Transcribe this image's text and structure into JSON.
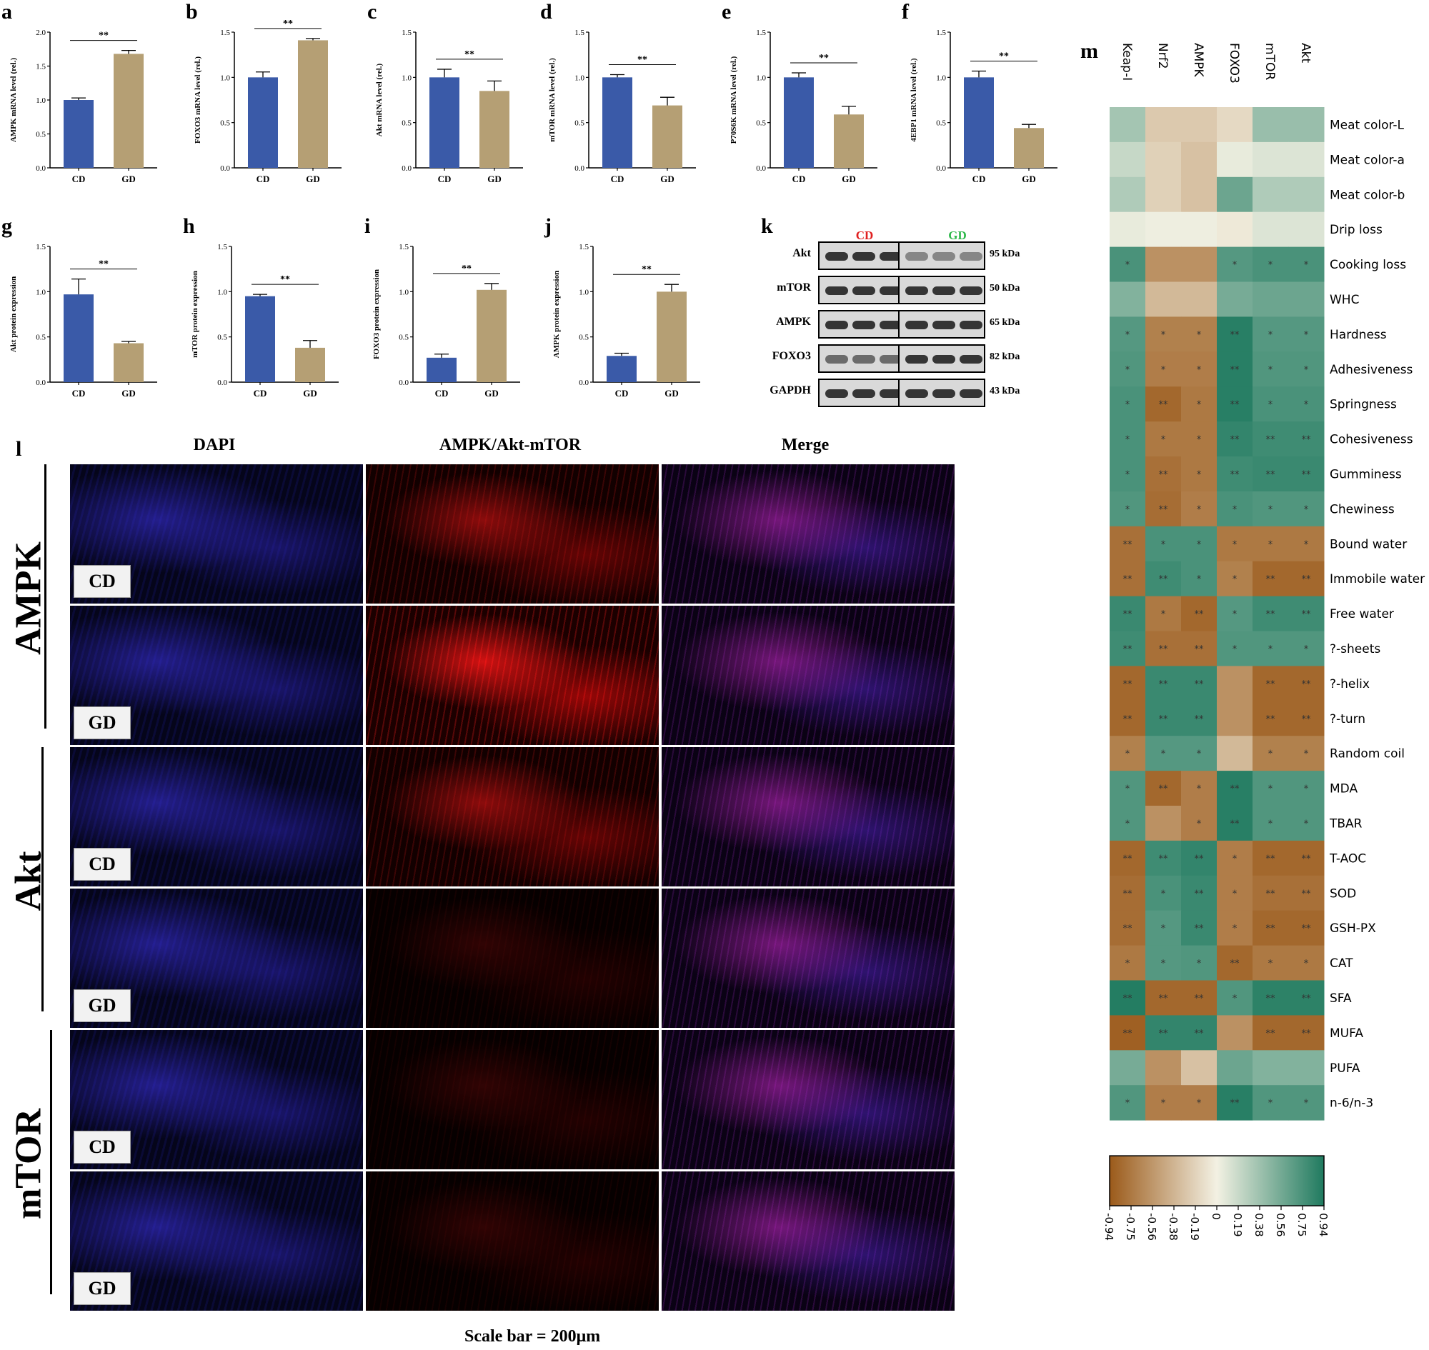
{
  "bar_panels": [
    {
      "letter": "a",
      "ylabel": "AMPK mRNA level (rel.)",
      "yticks": [
        "0.0",
        "0.5",
        "1.0",
        "1.5",
        "2.0"
      ],
      "ymax": 2.0,
      "values": [
        1.0,
        1.68
      ],
      "errors": [
        0.03,
        0.05
      ],
      "sig": "**"
    },
    {
      "letter": "b",
      "ylabel": "FOXO3 mRNA level (rel.)",
      "yticks": [
        "0.0",
        "0.5",
        "1.0",
        "1.5"
      ],
      "ymax": 1.5,
      "values": [
        1.0,
        1.41
      ],
      "errors": [
        0.06,
        0.02
      ],
      "sig": "**"
    },
    {
      "letter": "c",
      "ylabel": "Akt mRNA level (rel.)",
      "yticks": [
        "0.0",
        "0.5",
        "1.0",
        "1.5"
      ],
      "ymax": 1.5,
      "values": [
        1.0,
        0.85
      ],
      "errors": [
        0.09,
        0.11
      ],
      "sig": "**"
    },
    {
      "letter": "d",
      "ylabel": "mTOR mRNA level (rel.)",
      "yticks": [
        "0.0",
        "0.5",
        "1.0",
        "1.5"
      ],
      "ymax": 1.5,
      "values": [
        1.0,
        0.69
      ],
      "errors": [
        0.03,
        0.09
      ],
      "sig": "**"
    },
    {
      "letter": "e",
      "ylabel": "P70S6K mRNA level (rel.)",
      "yticks": [
        "0.0",
        "0.5",
        "1.0",
        "1.5"
      ],
      "ymax": 1.5,
      "values": [
        1.0,
        0.59
      ],
      "errors": [
        0.05,
        0.09
      ],
      "sig": "**"
    },
    {
      "letter": "f",
      "ylabel": "4EBP1 mRNA level (rel.)",
      "yticks": [
        "0.0",
        "0.5",
        "1.0",
        "1.5"
      ],
      "ymax": 1.5,
      "values": [
        1.0,
        0.44
      ],
      "errors": [
        0.07,
        0.04
      ],
      "sig": "**"
    },
    {
      "letter": "g",
      "ylabel": "Akt protein expression",
      "yticks": [
        "0.0",
        "0.5",
        "1.0",
        "1.5"
      ],
      "ymax": 1.5,
      "values": [
        0.97,
        0.43
      ],
      "errors": [
        0.17,
        0.02
      ],
      "sig": "**"
    },
    {
      "letter": "h",
      "ylabel": "mTOR protein expression",
      "yticks": [
        "0.0",
        "0.5",
        "1.0",
        "1.5"
      ],
      "ymax": 1.5,
      "values": [
        0.95,
        0.38
      ],
      "errors": [
        0.02,
        0.08
      ],
      "sig": "**"
    },
    {
      "letter": "i",
      "ylabel": "FOXO3 protein expression",
      "yticks": [
        "0.0",
        "0.5",
        "1.0",
        "1.5"
      ],
      "ymax": 1.5,
      "values": [
        0.27,
        1.02
      ],
      "errors": [
        0.04,
        0.07
      ],
      "sig": "**"
    },
    {
      "letter": "j",
      "ylabel": "AMPK protein expression",
      "yticks": [
        "0.0",
        "0.5",
        "1.0",
        "1.5"
      ],
      "ymax": 1.5,
      "values": [
        0.29,
        1.0
      ],
      "errors": [
        0.03,
        0.08
      ],
      "sig": "**"
    }
  ],
  "bar_categories": [
    "CD",
    "GD"
  ],
  "bar_colors": {
    "CD": "#3a5aa8",
    "GD": "#b59f74"
  },
  "blot": {
    "letter": "k",
    "groups": [
      {
        "label": "CD",
        "color": "#e02020"
      },
      {
        "label": "GD",
        "color": "#2db84a"
      }
    ],
    "rows": [
      {
        "name": "Akt",
        "kda": "95 kDa"
      },
      {
        "name": "mTOR",
        "kda": "50 kDa"
      },
      {
        "name": "AMPK",
        "kda": "65 kDa"
      },
      {
        "name": "FOXO3",
        "kda": "82 kDa"
      },
      {
        "name": "GAPDH",
        "kda": "43 kDa"
      }
    ]
  },
  "fluor": {
    "letter": "l",
    "columns": [
      "DAPI",
      "AMPK/Akt-mTOR",
      "Merge"
    ],
    "rows": [
      {
        "label": "AMPK"
      },
      {
        "label": "Akt"
      },
      {
        "label": "mTOR"
      }
    ],
    "groups": [
      "CD",
      "GD"
    ],
    "scale_bar": "Scale bar = 200μm"
  },
  "heatmap": {
    "letter": "m",
    "columns": [
      "Keap-I",
      "Nrf2",
      "AMPK",
      "FOXO3",
      "mTOR",
      "Akt"
    ],
    "rows": [
      "Meat color-L",
      "Meat color-a",
      "Meat color-b",
      "Drip loss",
      "Cooking loss",
      "WHC",
      "Hardness",
      "Adhesiveness",
      "Springness",
      "Cohesiveness",
      "Gumminess",
      "Chewiness",
      "Bound water",
      "Immobile water",
      "Free water",
      "?-sheets",
      "?-helix",
      "?-turn",
      "Random coil",
      "MDA",
      "TBAR",
      "T-AOC",
      "SOD",
      "GSH-PX",
      "CAT",
      "SFA",
      "MUFA",
      "PUFA",
      "n-6/n-3"
    ],
    "colorbar_ticks": [
      "-0.94",
      "-0.75",
      "-0.56",
      "-0.38",
      "-0.19",
      "0",
      "0.19",
      "0.38",
      "0.56",
      "0.75",
      "0.94"
    ],
    "colors": {
      "neg": "#9b5a1a",
      "mid": "#f3f1e3",
      "pos": "#1f7a5f"
    }
  },
  "chart_data": [
    {
      "type": "bar",
      "title": "",
      "xlabel": "",
      "ylabel": "AMPK mRNA level (rel.)",
      "categories": [
        "CD",
        "GD"
      ],
      "values": [
        1.0,
        1.68
      ],
      "ylim": [
        0,
        2.0
      ]
    },
    {
      "type": "bar",
      "title": "",
      "xlabel": "",
      "ylabel": "FOXO3 mRNA level (rel.)",
      "categories": [
        "CD",
        "GD"
      ],
      "values": [
        1.0,
        1.41
      ],
      "ylim": [
        0,
        1.5
      ]
    },
    {
      "type": "bar",
      "title": "",
      "xlabel": "",
      "ylabel": "Akt mRNA level (rel.)",
      "categories": [
        "CD",
        "GD"
      ],
      "values": [
        1.0,
        0.85
      ],
      "ylim": [
        0,
        1.5
      ]
    },
    {
      "type": "bar",
      "title": "",
      "xlabel": "",
      "ylabel": "mTOR mRNA level (rel.)",
      "categories": [
        "CD",
        "GD"
      ],
      "values": [
        1.0,
        0.69
      ],
      "ylim": [
        0,
        1.5
      ]
    },
    {
      "type": "bar",
      "title": "",
      "xlabel": "",
      "ylabel": "P70S6K mRNA level (rel.)",
      "categories": [
        "CD",
        "GD"
      ],
      "values": [
        1.0,
        0.59
      ],
      "ylim": [
        0,
        1.5
      ]
    },
    {
      "type": "bar",
      "title": "",
      "xlabel": "",
      "ylabel": "4EBP1 mRNA level (rel.)",
      "categories": [
        "CD",
        "GD"
      ],
      "values": [
        1.0,
        0.44
      ],
      "ylim": [
        0,
        1.5
      ]
    },
    {
      "type": "bar",
      "title": "",
      "xlabel": "",
      "ylabel": "Akt protein expression",
      "categories": [
        "CD",
        "GD"
      ],
      "values": [
        0.97,
        0.43
      ],
      "ylim": [
        0,
        1.5
      ]
    },
    {
      "type": "bar",
      "title": "",
      "xlabel": "",
      "ylabel": "mTOR protein expression",
      "categories": [
        "CD",
        "GD"
      ],
      "values": [
        0.95,
        0.38
      ],
      "ylim": [
        0,
        1.5
      ]
    },
    {
      "type": "bar",
      "title": "",
      "xlabel": "",
      "ylabel": "FOXO3 protein expression",
      "categories": [
        "CD",
        "GD"
      ],
      "values": [
        0.27,
        1.02
      ],
      "ylim": [
        0,
        1.5
      ]
    },
    {
      "type": "bar",
      "title": "",
      "xlabel": "",
      "ylabel": "AMPK protein expression",
      "categories": [
        "CD",
        "GD"
      ],
      "values": [
        0.29,
        1.0
      ],
      "ylim": [
        0,
        1.5
      ]
    },
    {
      "type": "heatmap",
      "title": "",
      "x": [
        "Keap-I",
        "Nrf2",
        "AMPK",
        "FOXO3",
        "mTOR",
        "Akt"
      ],
      "y": [
        "Meat color-L",
        "Meat color-a",
        "Meat color-b",
        "Drip loss",
        "Cooking loss",
        "WHC",
        "Hardness",
        "Adhesiveness",
        "Springness",
        "Cohesiveness",
        "Gumminess",
        "Chewiness",
        "Bound water",
        "Immobile water",
        "Free water",
        "?-sheets",
        "?-helix",
        "?-turn",
        "Random coil",
        "MDA",
        "TBAR",
        "T-AOC",
        "SOD",
        "GSH-PX",
        "CAT",
        "SFA",
        "MUFA",
        "PUFA",
        "n-6/n-3"
      ],
      "values": [
        [
          0.35,
          -0.25,
          -0.25,
          -0.15,
          0.4,
          0.4
        ],
        [
          0.2,
          -0.2,
          -0.3,
          0.05,
          0.1,
          0.1
        ],
        [
          0.3,
          -0.2,
          -0.3,
          0.6,
          0.3,
          0.3
        ],
        [
          0.05,
          0.02,
          0.02,
          -0.05,
          0.1,
          0.1
        ],
        [
          0.75,
          -0.6,
          -0.6,
          0.7,
          0.75,
          0.75
        ],
        [
          0.5,
          -0.35,
          -0.35,
          0.55,
          0.6,
          0.6
        ],
        [
          0.7,
          -0.7,
          -0.7,
          0.9,
          0.7,
          0.7
        ],
        [
          0.72,
          -0.72,
          -0.72,
          0.9,
          0.72,
          0.72
        ],
        [
          0.75,
          -0.85,
          -0.75,
          0.9,
          0.75,
          0.75
        ],
        [
          0.75,
          -0.75,
          -0.75,
          0.85,
          0.8,
          0.8
        ],
        [
          0.75,
          -0.8,
          -0.75,
          0.8,
          0.82,
          0.82
        ],
        [
          0.72,
          -0.82,
          -0.72,
          0.75,
          0.72,
          0.72
        ],
        [
          -0.8,
          0.75,
          0.75,
          -0.75,
          -0.75,
          -0.75
        ],
        [
          -0.8,
          0.8,
          0.75,
          -0.7,
          -0.85,
          -0.85
        ],
        [
          0.82,
          -0.75,
          -0.85,
          0.7,
          0.8,
          0.8
        ],
        [
          0.8,
          -0.8,
          -0.8,
          0.72,
          0.72,
          0.72
        ],
        [
          -0.85,
          0.82,
          0.82,
          -0.6,
          -0.85,
          -0.85
        ],
        [
          -0.85,
          0.82,
          0.82,
          -0.6,
          -0.85,
          -0.85
        ],
        [
          -0.7,
          0.7,
          0.7,
          -0.35,
          -0.7,
          -0.7
        ],
        [
          0.72,
          -0.85,
          -0.72,
          0.9,
          0.72,
          0.72
        ],
        [
          0.72,
          -0.6,
          -0.72,
          0.9,
          0.72,
          0.72
        ],
        [
          -0.85,
          0.8,
          0.85,
          -0.72,
          -0.85,
          -0.85
        ],
        [
          -0.82,
          0.75,
          0.82,
          -0.72,
          -0.8,
          -0.8
        ],
        [
          -0.82,
          0.7,
          0.82,
          -0.72,
          -0.85,
          -0.85
        ],
        [
          -0.75,
          0.7,
          0.72,
          -0.85,
          -0.75,
          -0.75
        ],
        [
          0.92,
          -0.85,
          -0.85,
          0.72,
          0.88,
          0.88
        ],
        [
          -0.9,
          0.85,
          0.85,
          -0.6,
          -0.85,
          -0.85
        ],
        [
          0.55,
          -0.6,
          -0.3,
          0.6,
          0.5,
          0.5
        ],
        [
          0.72,
          -0.72,
          -0.72,
          0.9,
          0.72,
          0.72
        ]
      ],
      "zlim": [
        -0.94,
        0.94
      ]
    }
  ]
}
